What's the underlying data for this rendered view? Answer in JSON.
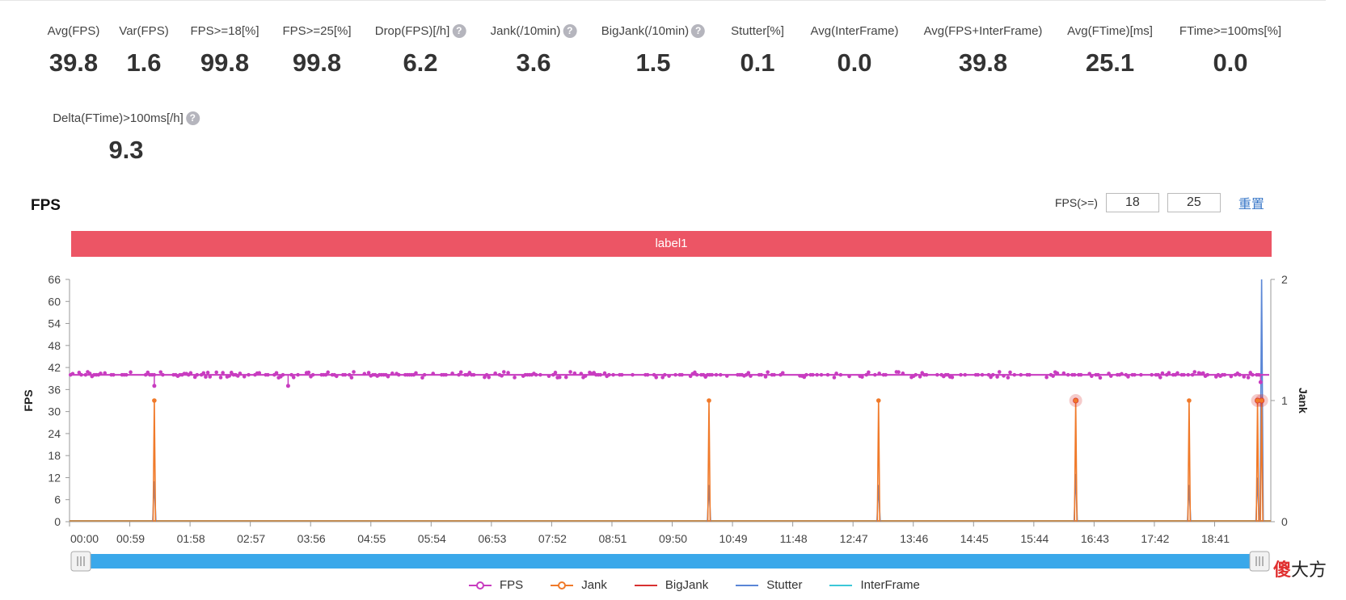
{
  "metrics": [
    {
      "label": "Avg(FPS)",
      "value": "39.8",
      "help": false
    },
    {
      "label": "Var(FPS)",
      "value": "1.6",
      "help": false
    },
    {
      "label": "FPS>=18[%]",
      "value": "99.8",
      "help": false
    },
    {
      "label": "FPS>=25[%]",
      "value": "99.8",
      "help": false
    },
    {
      "label": "Drop(FPS)[/h]",
      "value": "6.2",
      "help": true
    },
    {
      "label": "Jank(/10min)",
      "value": "3.6",
      "help": true
    },
    {
      "label": "BigJank(/10min)",
      "value": "1.5",
      "help": true
    },
    {
      "label": "Stutter[%]",
      "value": "0.1",
      "help": false
    },
    {
      "label": "Avg(InterFrame)",
      "value": "0.0",
      "help": false
    },
    {
      "label": "Avg(FPS+InterFrame)",
      "value": "39.8",
      "help": false
    },
    {
      "label": "Avg(FTime)[ms]",
      "value": "25.1",
      "help": false
    },
    {
      "label": "FTime>=100ms[%]",
      "value": "0.0",
      "help": false
    },
    {
      "label": "Delta(FTime)>100ms[/h]",
      "value": "9.3",
      "help": true
    }
  ],
  "help_glyph": "?",
  "section_title": "FPS",
  "fps_threshold": {
    "label": "FPS(>=)",
    "low": "18",
    "high": "25",
    "reset": "重置"
  },
  "label_bar": "label1",
  "colors": {
    "fps": "#c83cc0",
    "jank": "#f07a2a",
    "bigjank": "#d83030",
    "stutter": "#5a86d6",
    "interframe": "#3cc8d8",
    "labelbar": "#ec5565",
    "slider": "#3aa8ea"
  },
  "chart_data": {
    "type": "line",
    "ylabel": "FPS",
    "y2label": "Jank",
    "ylim": [
      0,
      66
    ],
    "yticks": [
      0,
      6,
      12,
      18,
      24,
      30,
      36,
      42,
      48,
      54,
      60,
      66
    ],
    "y2lim": [
      0,
      2
    ],
    "y2ticks": [
      0,
      1,
      2
    ],
    "xlim_seconds": [
      0,
      1176
    ],
    "xticks": [
      "00:00",
      "00:59",
      "01:58",
      "02:57",
      "03:56",
      "04:55",
      "05:54",
      "06:53",
      "07:52",
      "08:51",
      "09:50",
      "10:49",
      "11:48",
      "12:47",
      "13:46",
      "14:45",
      "15:44",
      "16:43",
      "17:42",
      "18:41"
    ],
    "series": [
      {
        "name": "FPS",
        "baseline": 40,
        "dips": [
          {
            "t": 83,
            "v": 37
          },
          {
            "t": 214,
            "v": 37
          },
          {
            "t": 1166,
            "v": 38
          }
        ]
      },
      {
        "name": "Jank",
        "events": [
          {
            "t": 83,
            "v": 1
          },
          {
            "t": 626,
            "v": 1
          },
          {
            "t": 792,
            "v": 1
          },
          {
            "t": 985,
            "v": 1
          },
          {
            "t": 1096,
            "v": 1
          },
          {
            "t": 1163,
            "v": 1
          },
          {
            "t": 1167,
            "v": 1
          }
        ]
      },
      {
        "name": "BigJank",
        "events": [
          {
            "t": 985,
            "v": 1
          },
          {
            "t": 1163,
            "v": 1
          },
          {
            "t": 1167,
            "v": 1
          }
        ]
      },
      {
        "name": "Stutter",
        "events": [
          {
            "t": 83,
            "v": 11
          },
          {
            "t": 626,
            "v": 10
          },
          {
            "t": 792,
            "v": 10
          },
          {
            "t": 985,
            "v": 13
          },
          {
            "t": 1096,
            "v": 10
          },
          {
            "t": 1163,
            "v": 12
          },
          {
            "t": 1167,
            "v": 66
          }
        ]
      },
      {
        "name": "InterFrame",
        "values": 0
      }
    ],
    "legend": [
      "FPS",
      "Jank",
      "BigJank",
      "Stutter",
      "InterFrame"
    ],
    "legend_position": "bottom"
  },
  "watermark": {
    "red": "傻",
    "black": "大方"
  }
}
